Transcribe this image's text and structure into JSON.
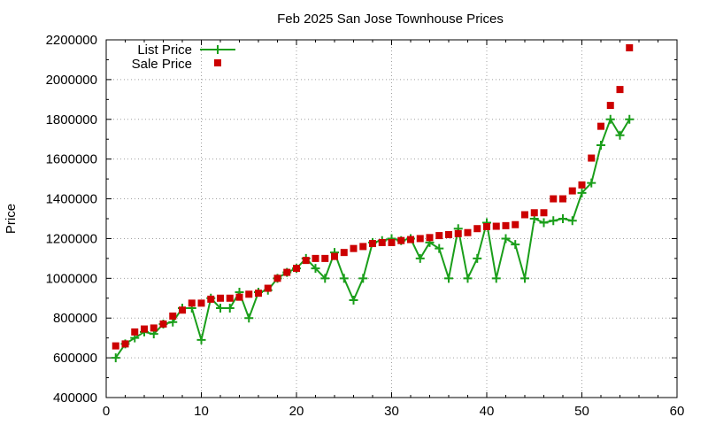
{
  "chart_data": {
    "type": "line",
    "title": "Feb 2025 San Jose Townhouse Prices",
    "xlabel": "",
    "ylabel": "Price",
    "xlim": [
      0,
      60
    ],
    "ylim": [
      400000,
      2200000
    ],
    "xticks": [
      "0",
      "10",
      "20",
      "30",
      "40",
      "50",
      "60"
    ],
    "yticks": [
      "400000",
      "600000",
      "800000",
      "1000000",
      "1200000",
      "1400000",
      "1600000",
      "1800000",
      "2000000",
      "2200000"
    ],
    "grid": true,
    "legend_position": "top-left",
    "x": [
      1,
      2,
      3,
      4,
      5,
      6,
      7,
      8,
      9,
      10,
      11,
      12,
      13,
      14,
      15,
      16,
      17,
      18,
      19,
      20,
      21,
      22,
      23,
      24,
      25,
      26,
      27,
      28,
      29,
      30,
      31,
      32,
      33,
      34,
      35,
      36,
      37,
      38,
      39,
      40,
      41,
      42,
      43,
      44,
      45,
      46,
      47,
      48,
      49,
      50,
      51,
      52,
      53,
      54,
      55
    ],
    "series": [
      {
        "name": "List Price",
        "style": "line+cross",
        "color": "#1a9e1a",
        "values": [
          600000,
          670000,
          700000,
          730000,
          720000,
          770000,
          780000,
          850000,
          850000,
          690000,
          900000,
          850000,
          850000,
          930000,
          800000,
          930000,
          940000,
          1000000,
          1030000,
          1050000,
          1100000,
          1050000,
          1000000,
          1130000,
          1000000,
          890000,
          1000000,
          1180000,
          1190000,
          1200000,
          1190000,
          1200000,
          1100000,
          1180000,
          1150000,
          1000000,
          1250000,
          1000000,
          1100000,
          1280000,
          1000000,
          1200000,
          1170000,
          1000000,
          1300000,
          1280000,
          1290000,
          1300000,
          1290000,
          1430000,
          1480000,
          1670000,
          1800000,
          1720000,
          1800000
        ]
      },
      {
        "name": "Sale Price",
        "style": "square",
        "color": "#cc0000",
        "values": [
          660000,
          670000,
          730000,
          745000,
          750000,
          770000,
          810000,
          840000,
          875000,
          875000,
          895000,
          900000,
          900000,
          905000,
          920000,
          925000,
          950000,
          1000000,
          1030000,
          1050000,
          1090000,
          1100000,
          1100000,
          1110000,
          1130000,
          1150000,
          1160000,
          1175000,
          1180000,
          1180000,
          1190000,
          1195000,
          1200000,
          1205000,
          1215000,
          1220000,
          1225000,
          1230000,
          1250000,
          1260000,
          1262000,
          1265000,
          1270000,
          1320000,
          1330000,
          1330000,
          1400000,
          1400000,
          1440000,
          1470000,
          1605000,
          1765000,
          1870000,
          1950000,
          2160000
        ]
      }
    ]
  }
}
